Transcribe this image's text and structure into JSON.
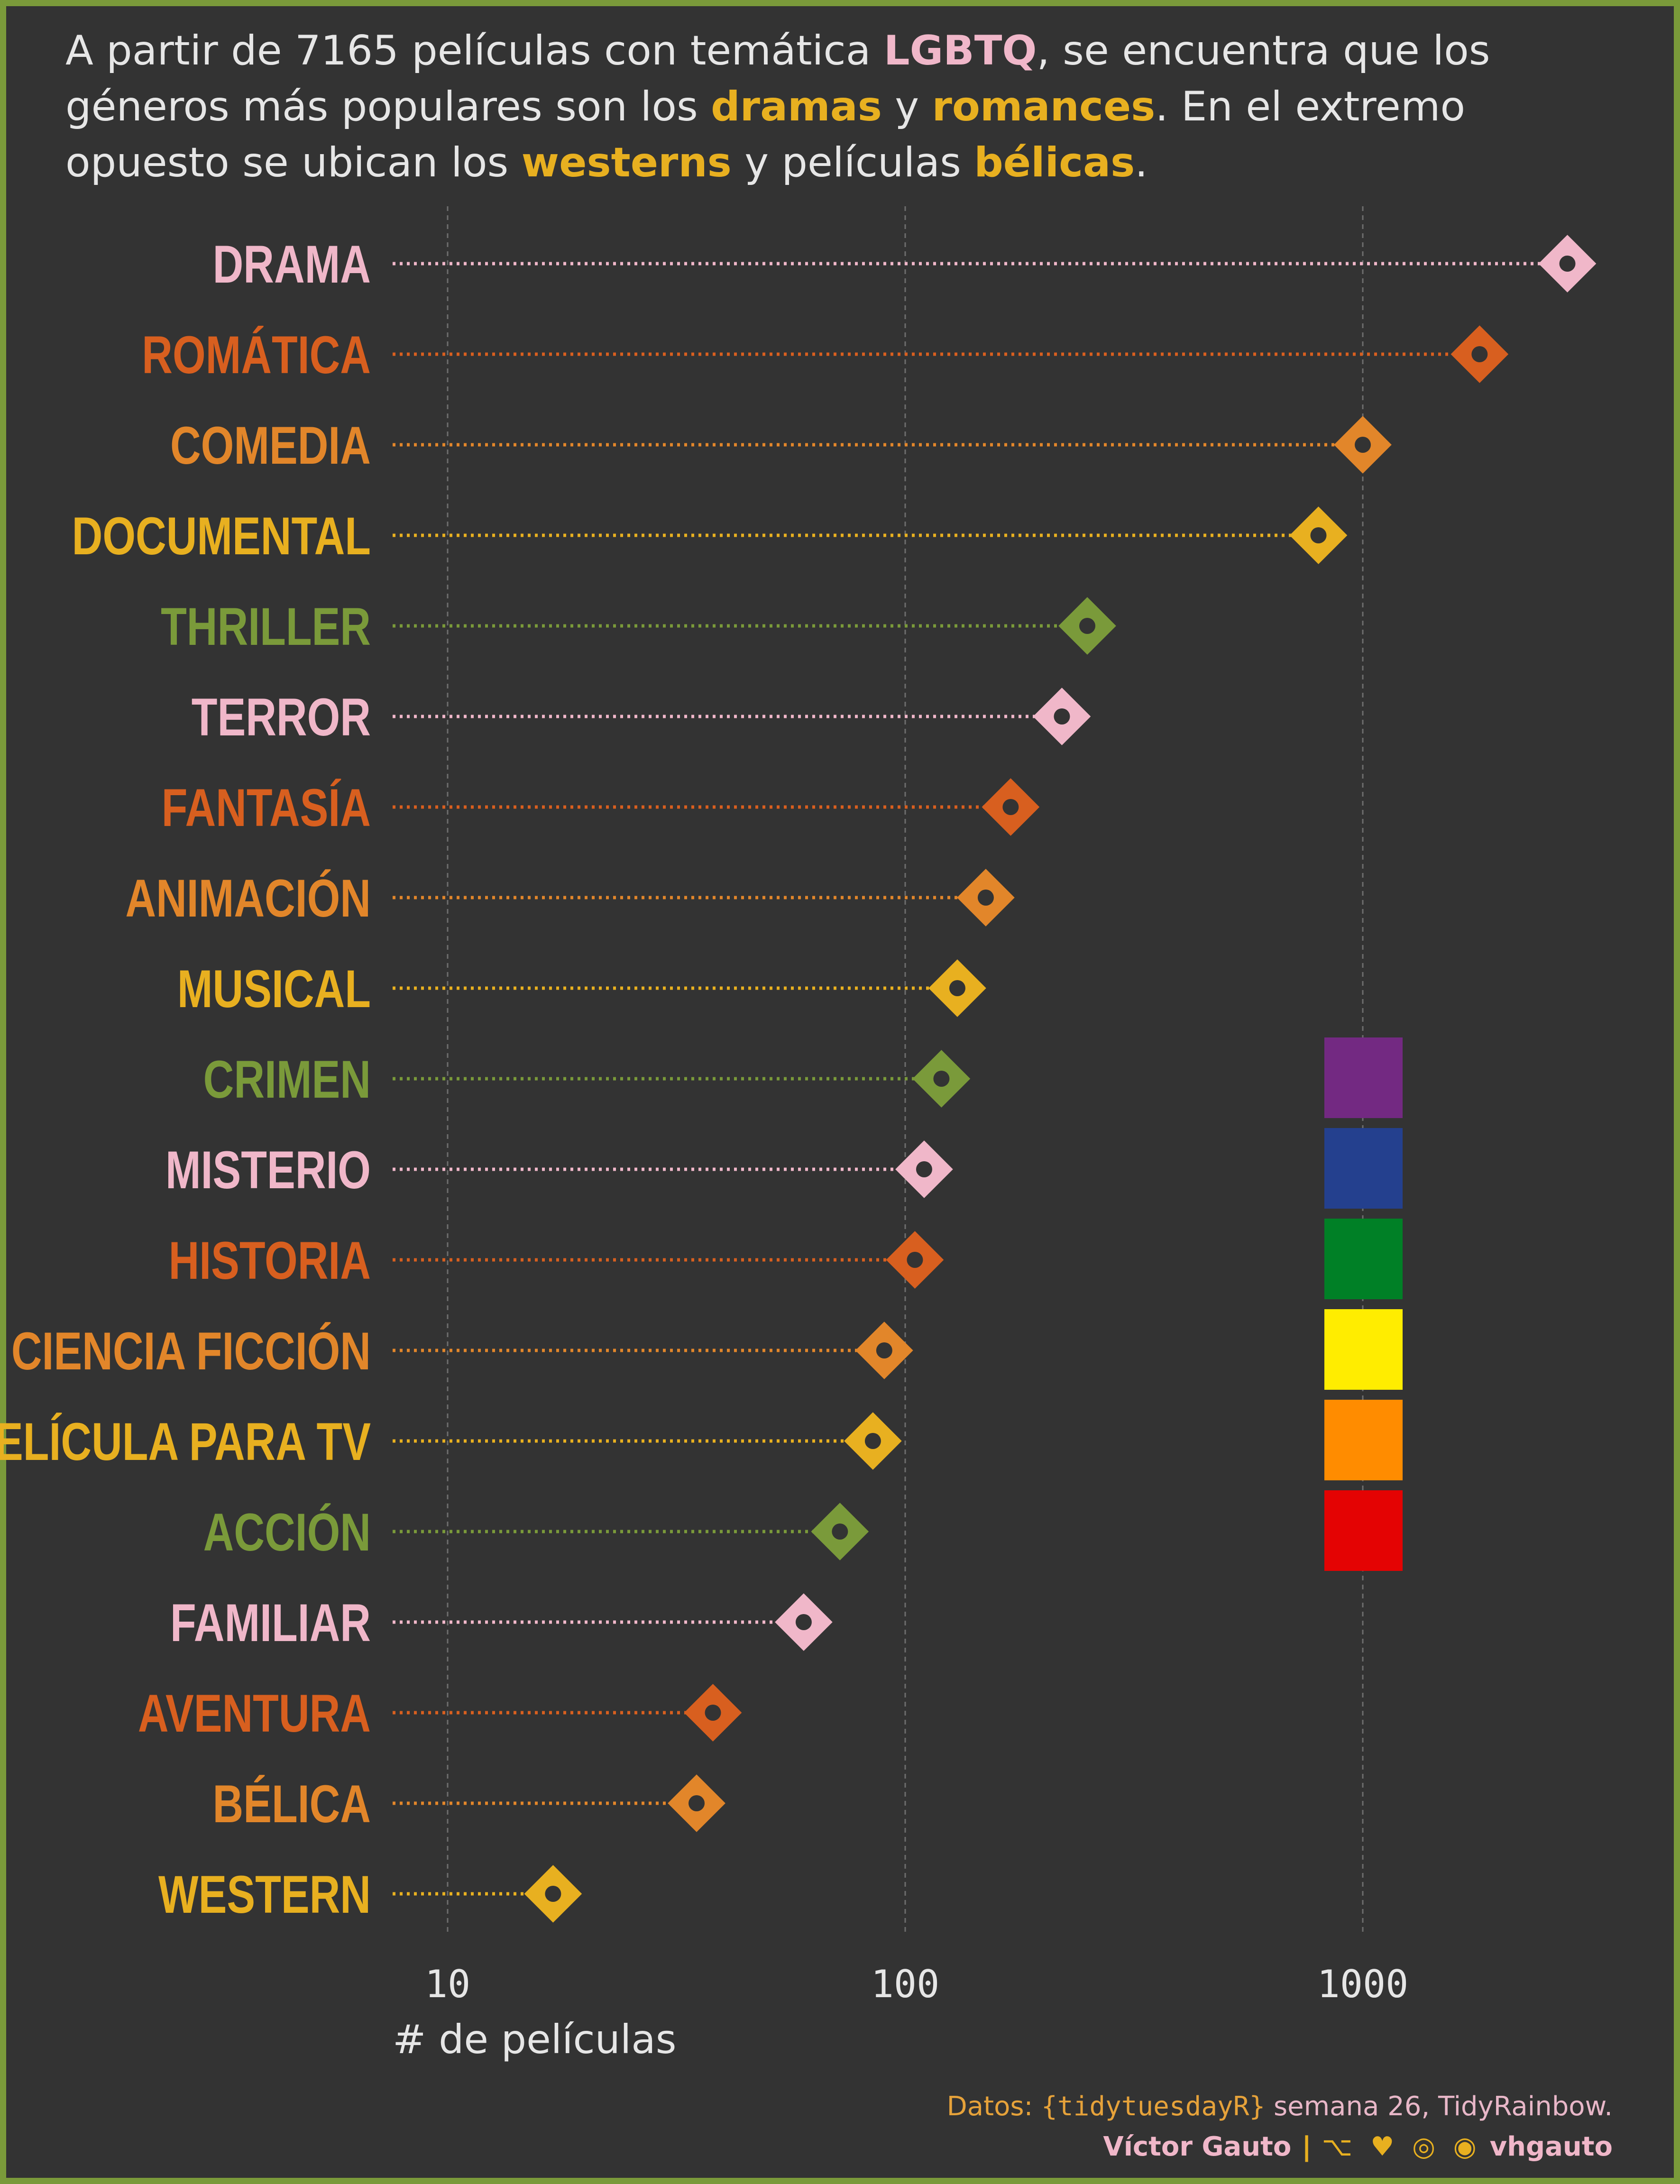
{
  "subtitle": {
    "p1": "A partir de 7165 películas con temática ",
    "h1": "LGBTQ",
    "p2": ", se encuentra que los géneros más populares son los ",
    "h2": "dramas",
    "p3": " y ",
    "h3": "romances",
    "p4": ". En el extremo opuesto se ubican los ",
    "h4": "westerns",
    "p5": " y películas ",
    "h5": "bélicas",
    "p6": "."
  },
  "colors": {
    "background": "#333333",
    "border": "#7a9a3a",
    "pink": "#f0b7c9",
    "orange_dark": "#d85f1f",
    "orange": "#e2862a",
    "yellow": "#e8b020",
    "green": "#7a9a3a",
    "grid": "#6e6e6e",
    "text": "#e6e6e6"
  },
  "chart_data": {
    "type": "scatter",
    "xscale": "log",
    "xlim": [
      5,
      3500
    ],
    "xticks": [
      10,
      100,
      1000
    ],
    "xlabel": "# de películas",
    "categories": [
      "DRAMA",
      "ROMÁTICA",
      "COMEDIA",
      "DOCUMENTAL",
      "THRILLER",
      "TERROR",
      "FANTASÍA",
      "ANIMACIÓN",
      "MUSICAL",
      "CRIMEN",
      "MISTERIO",
      "HISTORIA",
      "CIENCIA FICCIÓN",
      "PELÍCULA PARA TV",
      "ACCIÓN",
      "FAMILIAR",
      "AVENTURA",
      "BÉLICA",
      "WESTERN"
    ],
    "values": [
      2800,
      1800,
      1000,
      800,
      250,
      220,
      170,
      150,
      130,
      120,
      110,
      105,
      90,
      85,
      72,
      60,
      38,
      35,
      17
    ],
    "point_colors": [
      "#f0b7c9",
      "#d85f1f",
      "#e2862a",
      "#e8b020",
      "#7a9a3a",
      "#f0b7c9",
      "#d85f1f",
      "#e2862a",
      "#e8b020",
      "#7a9a3a",
      "#f0b7c9",
      "#d85f1f",
      "#e2862a",
      "#e8b020",
      "#7a9a3a",
      "#f0b7c9",
      "#d85f1f",
      "#e2862a",
      "#e8b020"
    ],
    "grid": true
  },
  "flag": {
    "colors": [
      "#732982",
      "#24408e",
      "#008026",
      "#ffed00",
      "#ff8c00",
      "#e40303"
    ]
  },
  "caption": {
    "line1_prefix": "Datos: ",
    "line1_mono": "{tidytuesdayR}",
    "line1_rest": " semana 26, TidyRainbow.",
    "author": "Víctor Gauto",
    "separator": "|",
    "icons": "⌥ ♥ ◎ ◉",
    "handle": "vhgauto"
  }
}
